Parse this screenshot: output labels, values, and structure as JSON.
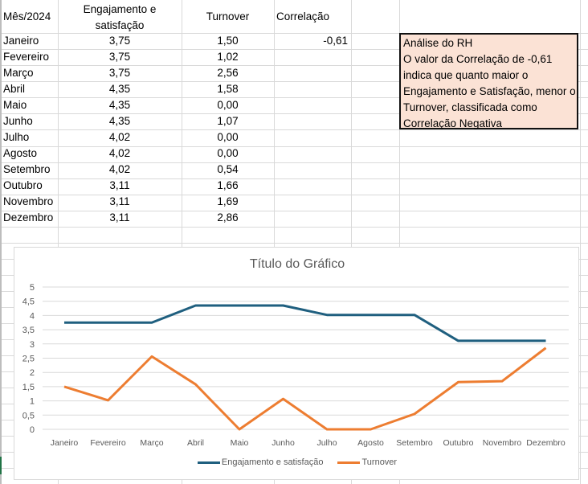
{
  "sheet": {
    "headers": {
      "month": "Mês/2024",
      "engagement_line1": "Engajamento e",
      "engagement_line2": "satisfação",
      "turnover": "Turnover",
      "correlation": "Correlação"
    },
    "rows": [
      {
        "month": "Janeiro",
        "engagement": "3,75",
        "turnover": "1,50",
        "correlation": "-0,61"
      },
      {
        "month": "Fevereiro",
        "engagement": "3,75",
        "turnover": "1,02",
        "correlation": ""
      },
      {
        "month": "Março",
        "engagement": "3,75",
        "turnover": "2,56",
        "correlation": ""
      },
      {
        "month": "Abril",
        "engagement": "4,35",
        "turnover": "1,58",
        "correlation": ""
      },
      {
        "month": "Maio",
        "engagement": "4,35",
        "turnover": "0,00",
        "correlation": ""
      },
      {
        "month": "Junho",
        "engagement": "4,35",
        "turnover": "1,07",
        "correlation": ""
      },
      {
        "month": "Julho",
        "engagement": "4,02",
        "turnover": "0,00",
        "correlation": ""
      },
      {
        "month": "Agosto",
        "engagement": "4,02",
        "turnover": "0,00",
        "correlation": ""
      },
      {
        "month": "Setembro",
        "engagement": "4,02",
        "turnover": "0,54",
        "correlation": ""
      },
      {
        "month": "Outubro",
        "engagement": "3,11",
        "turnover": "1,66",
        "correlation": ""
      },
      {
        "month": "Novembro",
        "engagement": "3,11",
        "turnover": "1,69",
        "correlation": ""
      },
      {
        "month": "Dezembro",
        "engagement": "3,11",
        "turnover": "2,86",
        "correlation": ""
      }
    ],
    "note": {
      "lines": [
        "Análise do RH",
        "O valor da Correlação de -0,61",
        "indica que quanto maior o",
        "Engajamento e Satisfação, menor o",
        "Turnover, classificada como",
        "Correlação Negativa"
      ],
      "background": "#fbe2d5"
    }
  },
  "chart_data": {
    "type": "line",
    "title": "Título do Gráfico",
    "categories": [
      "Janeiro",
      "Fevereiro",
      "Março",
      "Abril",
      "Maio",
      "Junho",
      "Julho",
      "Agosto",
      "Setembro",
      "Outubro",
      "Novembro",
      "Dezembro"
    ],
    "series": [
      {
        "name": "Engajamento e satisfação",
        "color": "#1f5f7f",
        "values": [
          3.75,
          3.75,
          3.75,
          4.35,
          4.35,
          4.35,
          4.02,
          4.02,
          4.02,
          3.11,
          3.11,
          3.11
        ]
      },
      {
        "name": "Turnover",
        "color": "#ed7d31",
        "values": [
          1.5,
          1.02,
          2.56,
          1.58,
          0.0,
          1.07,
          0.0,
          0.0,
          0.54,
          1.66,
          1.69,
          2.86
        ]
      }
    ],
    "yticks": [
      "0",
      "0,5",
      "1",
      "1,5",
      "2",
      "2,5",
      "3",
      "3,5",
      "4",
      "4,5",
      "5"
    ],
    "ylim": [
      0,
      5
    ],
    "xlabel": "",
    "ylabel": "",
    "grid": true,
    "legend_position": "bottom"
  }
}
